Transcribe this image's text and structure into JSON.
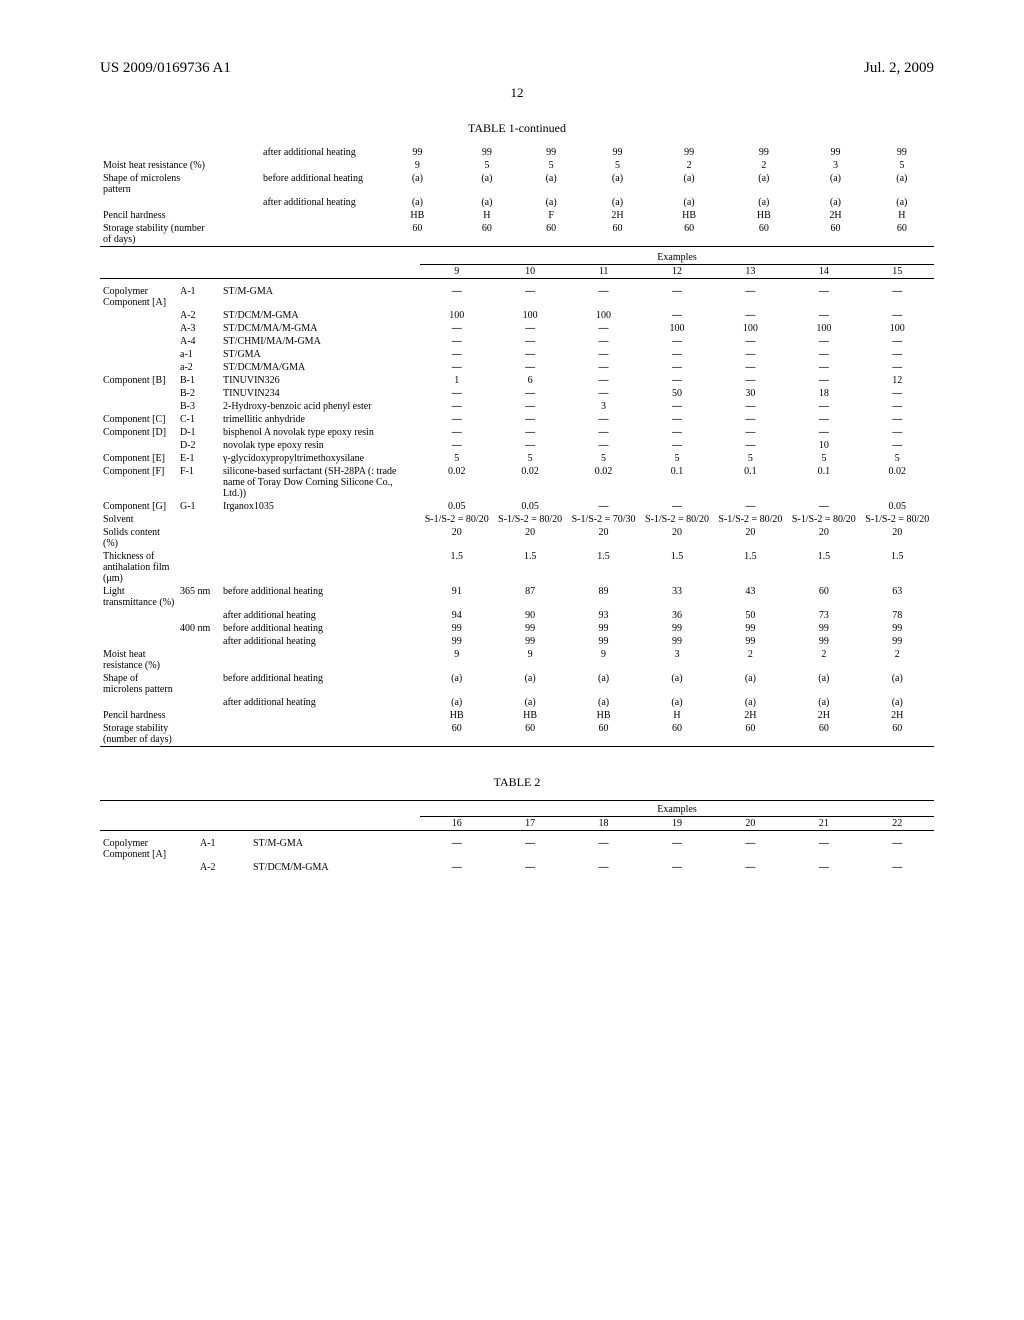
{
  "header": {
    "left": "US 2009/0169736 A1",
    "right": "Jul. 2, 2009"
  },
  "pagenum": "12",
  "table1": {
    "title": "TABLE 1-continued",
    "top_rows": [
      {
        "label": "",
        "sub": "",
        "cond": "after additional heating",
        "vals": [
          "99",
          "99",
          "99",
          "99",
          "99",
          "99",
          "99",
          "99"
        ]
      },
      {
        "label": "Moist heat resistance (%)",
        "sub": "",
        "cond": "",
        "vals": [
          "9",
          "5",
          "5",
          "5",
          "2",
          "2",
          "3",
          "5"
        ]
      },
      {
        "label": "Shape of microlens pattern",
        "sub": "",
        "cond": "before additional heating",
        "vals": [
          "(a)",
          "(a)",
          "(a)",
          "(a)",
          "(a)",
          "(a)",
          "(a)",
          "(a)"
        ]
      },
      {
        "label": "",
        "sub": "",
        "cond": "after additional heating",
        "vals": [
          "(a)",
          "(a)",
          "(a)",
          "(a)",
          "(a)",
          "(a)",
          "(a)",
          "(a)"
        ]
      },
      {
        "label": "Pencil hardness",
        "sub": "",
        "cond": "",
        "vals": [
          "HB",
          "H",
          "F",
          "2H",
          "HB",
          "HB",
          "2H",
          "H"
        ]
      },
      {
        "label": "Storage stability (number of days)",
        "sub": "",
        "cond": "",
        "vals": [
          "60",
          "60",
          "60",
          "60",
          "60",
          "60",
          "60",
          "60"
        ]
      }
    ],
    "examples_header": "Examples",
    "examples_nums": [
      "9",
      "10",
      "11",
      "12",
      "13",
      "14",
      "15"
    ],
    "rows_b": [
      {
        "grp": "Copolymer Component [A]",
        "code": "A-1",
        "desc": "ST/M-GMA",
        "vals": [
          "—",
          "—",
          "—",
          "—",
          "—",
          "—",
          "—"
        ]
      },
      {
        "grp": "",
        "code": "A-2",
        "desc": "ST/DCM/M-GMA",
        "vals": [
          "100",
          "100",
          "100",
          "—",
          "—",
          "—",
          "—"
        ]
      },
      {
        "grp": "",
        "code": "A-3",
        "desc": "ST/DCM/MA/M-GMA",
        "vals": [
          "—",
          "—",
          "—",
          "100",
          "100",
          "100",
          "100"
        ]
      },
      {
        "grp": "",
        "code": "A-4",
        "desc": "ST/CHMI/MA/M-GMA",
        "vals": [
          "—",
          "—",
          "—",
          "—",
          "—",
          "—",
          "—"
        ]
      },
      {
        "grp": "",
        "code": "a-1",
        "desc": "ST/GMA",
        "vals": [
          "—",
          "—",
          "—",
          "—",
          "—",
          "—",
          "—"
        ]
      },
      {
        "grp": "",
        "code": "a-2",
        "desc": "ST/DCM/MA/GMA",
        "vals": [
          "—",
          "—",
          "—",
          "—",
          "—",
          "—",
          "—"
        ]
      },
      {
        "grp": "Component [B]",
        "code": "B-1",
        "desc": "TINUVIN326",
        "vals": [
          "1",
          "6",
          "—",
          "—",
          "—",
          "—",
          "12"
        ]
      },
      {
        "grp": "",
        "code": "B-2",
        "desc": "TINUVIN234",
        "vals": [
          "—",
          "—",
          "—",
          "50",
          "30",
          "18",
          "—"
        ]
      },
      {
        "grp": "",
        "code": "B-3",
        "desc": "2-Hydroxy-benzoic acid phenyl ester",
        "vals": [
          "—",
          "—",
          "3",
          "—",
          "—",
          "—",
          "—"
        ]
      },
      {
        "grp": "Component [C]",
        "code": "C-1",
        "desc": "trimellitic anhydride",
        "vals": [
          "—",
          "—",
          "—",
          "—",
          "—",
          "—",
          "—"
        ]
      },
      {
        "grp": "Component [D]",
        "code": "D-1",
        "desc": "bisphenol A novolak type epoxy resin",
        "vals": [
          "—",
          "—",
          "—",
          "—",
          "—",
          "—",
          "—"
        ]
      },
      {
        "grp": "",
        "code": "D-2",
        "desc": "novolak type epoxy resin",
        "vals": [
          "—",
          "—",
          "—",
          "—",
          "—",
          "10",
          "—"
        ]
      },
      {
        "grp": "Component [E]",
        "code": "E-1",
        "desc": "γ-glycidoxypropyltrimethoxysilane",
        "vals": [
          "5",
          "5",
          "5",
          "5",
          "5",
          "5",
          "5"
        ]
      },
      {
        "grp": "Component [F]",
        "code": "F-1",
        "desc": "silicone-based surfactant (SH-28PA (: trade name of Toray Dow Corning Silicone Co., Ltd.))",
        "vals": [
          "0.02",
          "0.02",
          "0.02",
          "0.1",
          "0.1",
          "0.1",
          "0.02"
        ]
      },
      {
        "grp": "Component [G]",
        "code": "G-1",
        "desc": "Irganox1035",
        "vals": [
          "0.05",
          "0.05",
          "—",
          "—",
          "—",
          "—",
          "0.05"
        ]
      },
      {
        "grp": "Solvent",
        "code": "",
        "desc": "",
        "vals": [
          "S-1/S-2 = 80/20",
          "S-1/S-2 = 80/20",
          "S-1/S-2 = 70/30",
          "S-1/S-2 = 80/20",
          "S-1/S-2 = 80/20",
          "S-1/S-2 = 80/20",
          "S-1/S-2 = 80/20"
        ]
      },
      {
        "grp": "Solids content (%)",
        "code": "",
        "desc": "",
        "vals": [
          "20",
          "20",
          "20",
          "20",
          "20",
          "20",
          "20"
        ]
      },
      {
        "grp": "Thickness of antihalation film (μm)",
        "code": "",
        "desc": "",
        "vals": [
          "1.5",
          "1.5",
          "1.5",
          "1.5",
          "1.5",
          "1.5",
          "1.5"
        ]
      }
    ],
    "light_rows": [
      {
        "grp": "Light transmittance (%)",
        "sub": "365 nm",
        "cond": "before additional heating",
        "vals": [
          "91",
          "87",
          "89",
          "33",
          "43",
          "60",
          "63"
        ]
      },
      {
        "grp": "",
        "sub": "",
        "cond": "after additional heating",
        "vals": [
          "94",
          "90",
          "93",
          "36",
          "50",
          "73",
          "78"
        ]
      },
      {
        "grp": "",
        "sub": "400 nm",
        "cond": "before additional heating",
        "vals": [
          "99",
          "99",
          "99",
          "99",
          "99",
          "99",
          "99"
        ]
      },
      {
        "grp": "",
        "sub": "",
        "cond": "after additional heating",
        "vals": [
          "99",
          "99",
          "99",
          "99",
          "99",
          "99",
          "99"
        ]
      }
    ],
    "bottom_rows": [
      {
        "label": "Moist heat resistance (%)",
        "cond": "",
        "vals": [
          "9",
          "9",
          "9",
          "3",
          "2",
          "2",
          "2"
        ]
      },
      {
        "label": "Shape of microlens pattern",
        "cond": "before additional heating",
        "vals": [
          "(a)",
          "(a)",
          "(a)",
          "(a)",
          "(a)",
          "(a)",
          "(a)"
        ]
      },
      {
        "label": "",
        "cond": "after additional heating",
        "vals": [
          "(a)",
          "(a)",
          "(a)",
          "(a)",
          "(a)",
          "(a)",
          "(a)"
        ]
      },
      {
        "label": "Pencil hardness",
        "cond": "",
        "vals": [
          "HB",
          "HB",
          "HB",
          "H",
          "2H",
          "2H",
          "2H"
        ]
      },
      {
        "label": "Storage stability (number of days)",
        "cond": "",
        "vals": [
          "60",
          "60",
          "60",
          "60",
          "60",
          "60",
          "60"
        ]
      }
    ]
  },
  "table2": {
    "title": "TABLE 2",
    "examples_header": "Examples",
    "examples_nums": [
      "16",
      "17",
      "18",
      "19",
      "20",
      "21",
      "22"
    ],
    "rows": [
      {
        "grp": "Copolymer Component [A]",
        "code": "A-1",
        "desc": "ST/M-GMA",
        "vals": [
          "—",
          "—",
          "—",
          "—",
          "—",
          "—",
          "—"
        ]
      },
      {
        "grp": "",
        "code": "A-2",
        "desc": "ST/DCM/M-GMA",
        "vals": [
          "—",
          "—",
          "—",
          "—",
          "—",
          "—",
          "—"
        ]
      }
    ]
  }
}
